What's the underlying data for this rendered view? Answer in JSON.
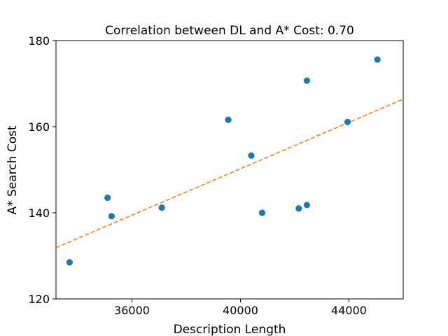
{
  "chart_data": {
    "type": "scatter",
    "title": "Correlation between DL and A* Cost: 0.70",
    "xlabel": "Description Length",
    "ylabel": "A* Search Cost",
    "xlim": [
      33200,
      46000
    ],
    "ylim": [
      120,
      180
    ],
    "xticks": [
      36000,
      40000,
      44000
    ],
    "yticks": [
      120,
      140,
      160,
      180
    ],
    "grid": false,
    "points": [
      {
        "x": 33700,
        "y": 128.5
      },
      {
        "x": 35100,
        "y": 143.5
      },
      {
        "x": 35250,
        "y": 139.2
      },
      {
        "x": 37100,
        "y": 141.2
      },
      {
        "x": 39550,
        "y": 161.6
      },
      {
        "x": 40400,
        "y": 153.3
      },
      {
        "x": 40800,
        "y": 140.0
      },
      {
        "x": 42150,
        "y": 141.0
      },
      {
        "x": 42450,
        "y": 141.8
      },
      {
        "x": 42450,
        "y": 170.7
      },
      {
        "x": 43950,
        "y": 161.1
      },
      {
        "x": 45050,
        "y": 175.6
      }
    ],
    "fit_line": {
      "x": [
        33200,
        46000
      ],
      "y": [
        131.9,
        166.4
      ]
    },
    "colors": {
      "points": "#1f77b4",
      "fit_line": "#ff7f0e"
    }
  }
}
